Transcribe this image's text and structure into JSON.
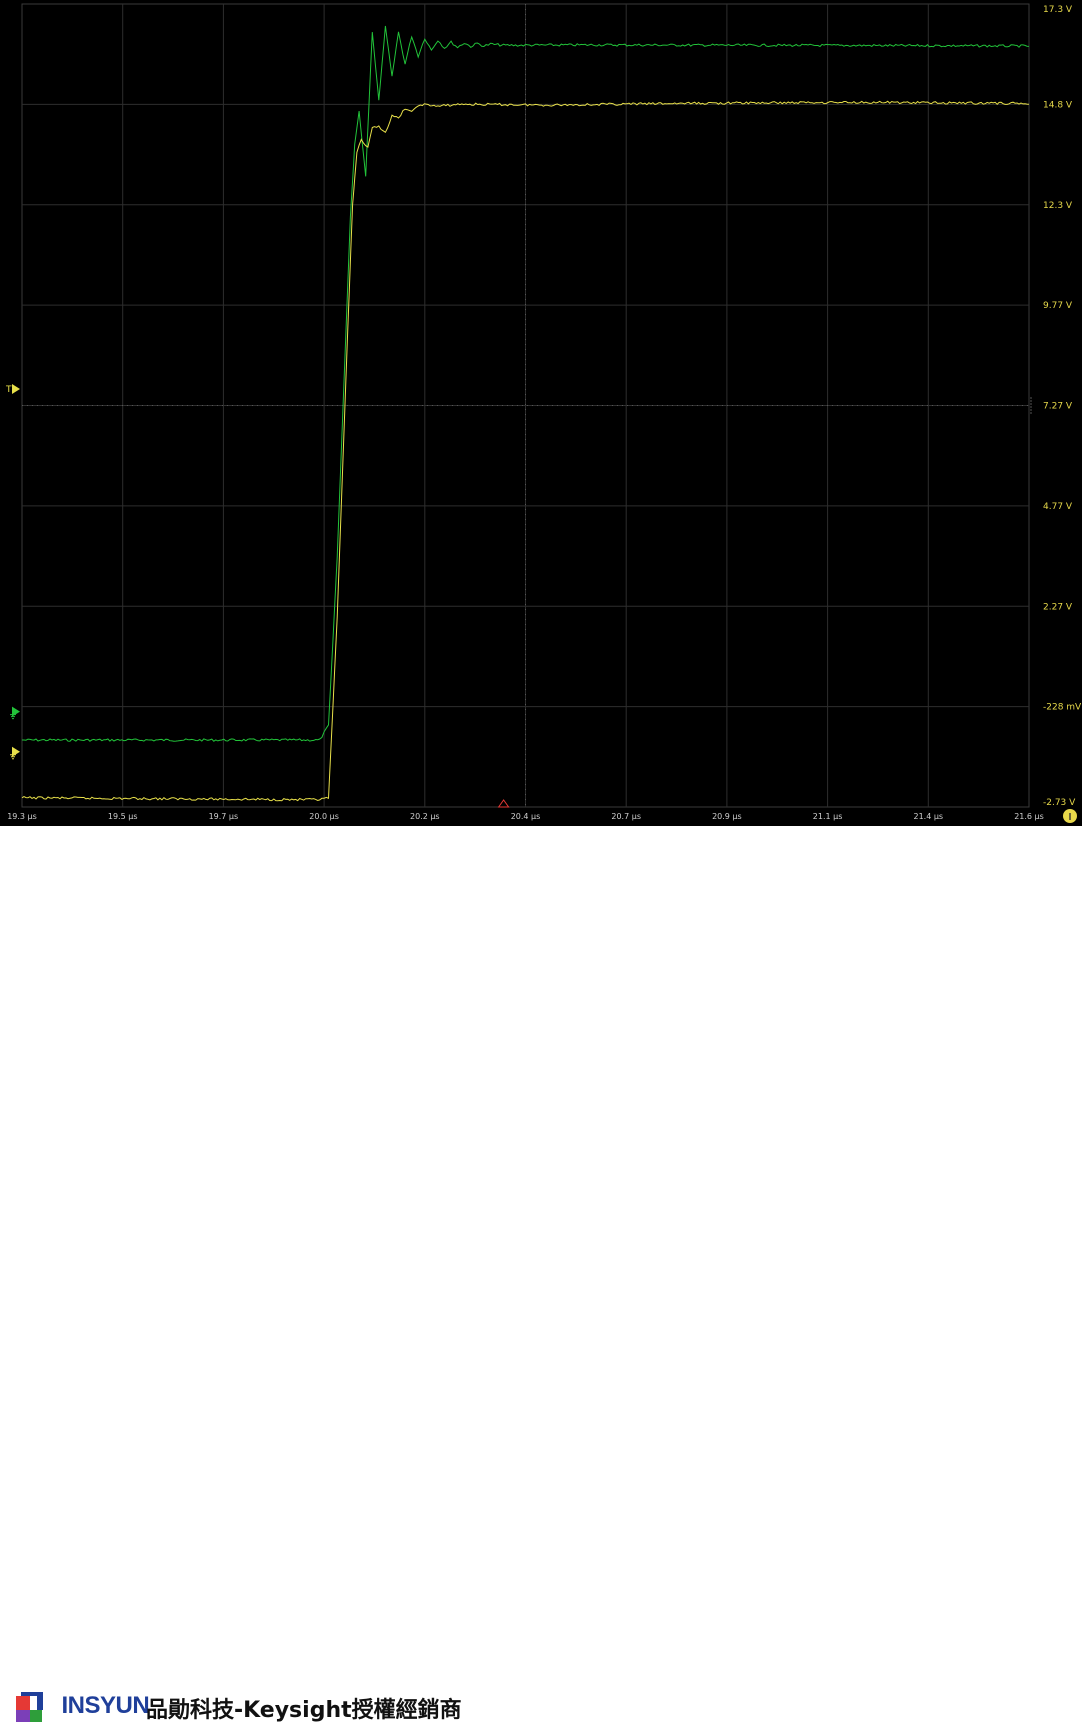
{
  "chart_data": {
    "type": "line",
    "title": "",
    "xlabel": "",
    "ylabel": "",
    "x_ticks": [
      "19.3 µs",
      "19.5 µs",
      "19.7 µs",
      "20.0 µs",
      "20.2 µs",
      "20.4 µs",
      "20.7 µs",
      "20.9 µs",
      "21.1 µs",
      "21.4 µs",
      "21.6 µs"
    ],
    "y_ticks": [
      "17.3 V",
      "14.8 V",
      "12.3 V",
      "9.77 V",
      "7.27 V",
      "4.77 V",
      "2.27 V",
      "-228 mV",
      "-2.73 V"
    ],
    "xlim_us": [
      19.3,
      21.6
    ],
    "ylim_V": [
      -2.73,
      17.3
    ],
    "grid": true,
    "series": [
      {
        "name": "",
        "color": "#22c33a",
        "points_us_V": [
          [
            19.3,
            -1.06
          ],
          [
            19.98,
            -1.06
          ],
          [
            20.0,
            -0.7
          ],
          [
            20.02,
            3.5
          ],
          [
            20.05,
            12.0
          ],
          [
            20.06,
            13.8
          ],
          [
            20.07,
            14.6
          ],
          [
            20.085,
            13.0
          ],
          [
            20.1,
            16.6
          ],
          [
            20.115,
            14.9
          ],
          [
            20.13,
            16.75
          ],
          [
            20.145,
            15.5
          ],
          [
            20.16,
            16.6
          ],
          [
            20.175,
            15.8
          ],
          [
            20.19,
            16.5
          ],
          [
            20.205,
            16.0
          ],
          [
            20.22,
            16.45
          ],
          [
            20.235,
            16.15
          ],
          [
            20.25,
            16.4
          ],
          [
            20.265,
            16.2
          ],
          [
            20.28,
            16.35
          ],
          [
            20.295,
            16.22
          ],
          [
            20.31,
            16.33
          ],
          [
            20.325,
            16.24
          ],
          [
            20.34,
            16.32
          ],
          [
            20.355,
            16.25
          ],
          [
            20.37,
            16.3
          ],
          [
            20.4,
            16.27
          ],
          [
            20.6,
            16.28
          ],
          [
            21.0,
            16.27
          ],
          [
            21.4,
            16.26
          ],
          [
            21.6,
            16.25
          ]
        ]
      },
      {
        "name": "",
        "color": "#e8e04a",
        "points_us_V": [
          [
            19.3,
            -2.5
          ],
          [
            19.98,
            -2.55
          ],
          [
            20.0,
            -2.5
          ],
          [
            20.02,
            2.0
          ],
          [
            20.04,
            8.0
          ],
          [
            20.055,
            12.3
          ],
          [
            20.065,
            13.6
          ],
          [
            20.075,
            13.9
          ],
          [
            20.09,
            13.7
          ],
          [
            20.1,
            14.2
          ],
          [
            20.115,
            14.25
          ],
          [
            20.13,
            14.1
          ],
          [
            20.145,
            14.5
          ],
          [
            20.16,
            14.45
          ],
          [
            20.175,
            14.7
          ],
          [
            20.19,
            14.6
          ],
          [
            20.21,
            14.8
          ],
          [
            20.25,
            14.75
          ],
          [
            20.3,
            14.8
          ],
          [
            20.5,
            14.78
          ],
          [
            20.8,
            14.82
          ],
          [
            21.2,
            14.85
          ],
          [
            21.6,
            14.82
          ]
        ]
      }
    ]
  },
  "markers": {
    "trigger_label": "T",
    "ch1_color": "#22c33a",
    "ch2_color": "#e8e04a"
  },
  "footer": {
    "brand_p": "P",
    "brand_rest": "INSYUN",
    "tagline": "品勛科技-Keysight授權經銷商"
  }
}
